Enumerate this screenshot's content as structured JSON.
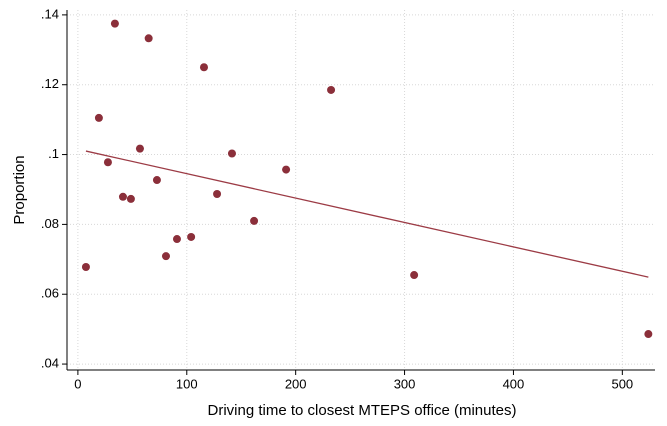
{
  "chart_data": {
    "type": "scatter",
    "x_label": "Driving time to closest MTEPS office (minutes)",
    "y_label": "Proportion",
    "xlim": [
      -10,
      530
    ],
    "ylim": [
      0.0383,
      0.1414
    ],
    "xticks": [
      0,
      100,
      200,
      300,
      400,
      500
    ],
    "yticks": [
      {
        "value": 0.04,
        "label": ".04"
      },
      {
        "value": 0.06,
        "label": ".06"
      },
      {
        "value": 0.08,
        "label": ".08"
      },
      {
        "value": 0.1,
        "label": ".1"
      },
      {
        "value": 0.12,
        "label": ".12"
      },
      {
        "value": 0.14,
        "label": ".14"
      }
    ],
    "grid": true,
    "points": {
      "color": "#8b2f3a",
      "x": [
        7.4,
        19.3,
        27.6,
        34,
        41.4,
        48.7,
        57,
        65,
        72.6,
        80.9,
        91,
        104,
        115.8,
        127.8,
        141.5,
        161.8,
        191.2,
        232.5,
        308.8,
        523.9
      ],
      "y": [
        0.0678,
        0.1105,
        0.0978,
        0.1375,
        0.0879,
        0.0873,
        0.1017,
        0.1333,
        0.0927,
        0.0709,
        0.0758,
        0.0764,
        0.125,
        0.0887,
        0.1003,
        0.081,
        0.0957,
        0.1185,
        0.0655,
        0.0486
      ]
    },
    "fit_line": {
      "color": "#9c3b45",
      "x": [
        7.4,
        523.9
      ],
      "y": [
        0.101,
        0.0649
      ]
    }
  }
}
